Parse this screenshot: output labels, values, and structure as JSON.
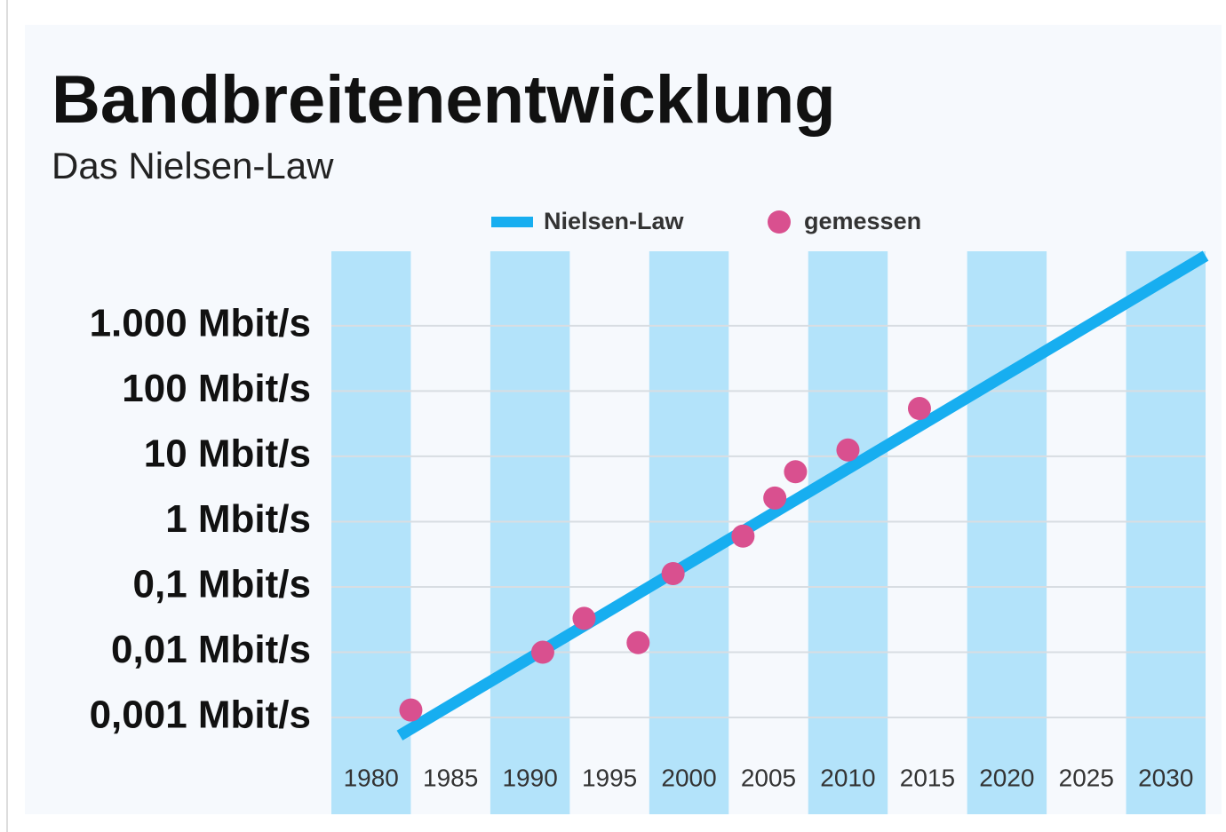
{
  "chart_data": {
    "type": "line",
    "title": "Bandbreitenentwicklung",
    "subtitle": "Das Nielsen-Law",
    "legend": "top",
    "ylog": true,
    "grid": true,
    "band_color": "#b3e3fa",
    "xlim": [
      1977.5,
      2032.5
    ],
    "xticks": [
      1980,
      1985,
      1990,
      1995,
      2000,
      2005,
      2010,
      2015,
      2020,
      2025,
      2030
    ],
    "ylim": [
      3.3e-05,
      13800
    ],
    "yticks": [
      {
        "value": 0.001,
        "label": "0,001 Mbit/s"
      },
      {
        "value": 0.01,
        "label": "0,01 Mbit/s"
      },
      {
        "value": 0.1,
        "label": "0,1 Mbit/s"
      },
      {
        "value": 1,
        "label": "1 Mbit/s"
      },
      {
        "value": 10,
        "label": "10 Mbit/s"
      },
      {
        "value": 100,
        "label": "100 Mbit/s"
      },
      {
        "value": 1000,
        "label": "1.000 Mbit/s"
      }
    ],
    "series": [
      {
        "name": "Nielsen-Law",
        "type": "line",
        "color": "#17aef0",
        "x": [
          1981.8,
          2032.5
        ],
        "values": [
          0.00053,
          11750
        ]
      },
      {
        "name": "gemessen",
        "type": "scatter",
        "color": "#d9508f",
        "x": [
          1982.5,
          1990.8,
          1993.4,
          1996.8,
          1999.0,
          2003.4,
          2005.4,
          2006.7,
          2010.0,
          2014.5
        ],
        "values": [
          0.0013,
          0.01,
          0.033,
          0.014,
          0.16,
          0.6,
          2.3,
          5.8,
          12.5,
          54
        ]
      }
    ]
  }
}
